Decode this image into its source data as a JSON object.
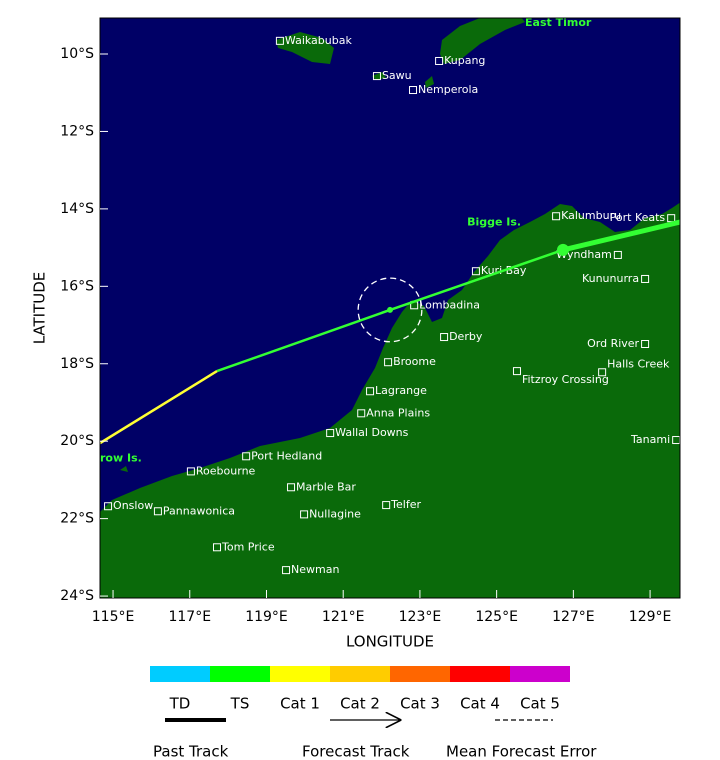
{
  "map": {
    "x_label": "LONGITUDE",
    "y_label": "LATITUDE",
    "xlim": [
      114.66,
      129.78
    ],
    "ylim": [
      9.07,
      24.05
    ],
    "xticks": [
      {
        "value": 115,
        "label": "115°E"
      },
      {
        "value": 117,
        "label": "117°E"
      },
      {
        "value": 119,
        "label": "119°E"
      },
      {
        "value": 121,
        "label": "121°E"
      },
      {
        "value": 123,
        "label": "123°E"
      },
      {
        "value": 125,
        "label": "125°E"
      },
      {
        "value": 127,
        "label": "127°E"
      },
      {
        "value": 129,
        "label": "129°E"
      }
    ],
    "yticks": [
      {
        "value": 10,
        "label": "10°S"
      },
      {
        "value": 12,
        "label": "12°S"
      },
      {
        "value": 14,
        "label": "14°S"
      },
      {
        "value": 16,
        "label": "16°S"
      },
      {
        "value": 18,
        "label": "18°S"
      },
      {
        "value": 20,
        "label": "20°S"
      },
      {
        "value": 22,
        "label": "22°S"
      },
      {
        "value": 24,
        "label": "24°S"
      }
    ],
    "sea_color": "#000066",
    "land_color": "#0a6a0a"
  },
  "places": [
    {
      "name": "Waikabubak",
      "lon": 119.35,
      "lat": 9.66
    },
    {
      "name": "Kupang",
      "lon": 123.5,
      "lat": 10.18
    },
    {
      "name": "Sawu",
      "lon": 121.88,
      "lat": 10.57
    },
    {
      "name": "Nemperola",
      "lon": 122.82,
      "lat": 10.93
    },
    {
      "name": "Kalumburu",
      "lon": 126.55,
      "lat": 14.19
    },
    {
      "name": "Port Keats",
      "lon": 129.55,
      "lat": 14.24
    },
    {
      "name": "Wyndham",
      "lon": 128.16,
      "lat": 15.19
    },
    {
      "name": "Kuri Bay",
      "lon": 124.46,
      "lat": 15.61
    },
    {
      "name": "Kununurra",
      "lon": 128.87,
      "lat": 15.81
    },
    {
      "name": "Lombadina",
      "lon": 122.85,
      "lat": 16.49
    },
    {
      "name": "Derby",
      "lon": 123.63,
      "lat": 17.31
    },
    {
      "name": "Ord River",
      "lon": 128.87,
      "lat": 17.49
    },
    {
      "name": "Broome",
      "lon": 122.17,
      "lat": 17.96
    },
    {
      "name": "Halls Creek",
      "lon": 127.75,
      "lat": 18.22
    },
    {
      "name": "Fitzroy Crossing",
      "lon": 125.53,
      "lat": 18.19
    },
    {
      "name": "Lagrange",
      "lon": 121.7,
      "lat": 18.71
    },
    {
      "name": "Anna Plains",
      "lon": 121.47,
      "lat": 19.28
    },
    {
      "name": "Wallal Downs",
      "lon": 120.66,
      "lat": 19.79
    },
    {
      "name": "Tanami",
      "lon": 129.68,
      "lat": 19.97
    },
    {
      "name": "Port Hedland",
      "lon": 118.47,
      "lat": 20.39
    },
    {
      "name": "Roebourne",
      "lon": 117.03,
      "lat": 20.78
    },
    {
      "name": "Marble Bar",
      "lon": 119.64,
      "lat": 21.19
    },
    {
      "name": "Onslow",
      "lon": 114.87,
      "lat": 21.68
    },
    {
      "name": "Pannawonica",
      "lon": 116.17,
      "lat": 21.81
    },
    {
      "name": "Telfer",
      "lon": 122.12,
      "lat": 21.65
    },
    {
      "name": "Nullagine",
      "lon": 119.98,
      "lat": 21.89
    },
    {
      "name": "Tom Price",
      "lon": 117.71,
      "lat": 22.74
    },
    {
      "name": "Newman",
      "lon": 119.51,
      "lat": 23.33
    }
  ],
  "regions": [
    {
      "name": "East Timor",
      "lon": 125.74,
      "lat": 9.2
    },
    {
      "name": "Bigge Is.",
      "lon": 124.23,
      "lat": 14.35
    },
    {
      "name": "row Is.",
      "lon": 114.66,
      "lat": 20.45
    }
  ],
  "track": {
    "segments": [
      {
        "kind": "past",
        "color": "#33ff33",
        "points": [
          [
            129.78,
            14.34
          ],
          [
            126.73,
            15.06
          ]
        ]
      },
      {
        "kind": "forecast",
        "color": "#33ff33",
        "points": [
          [
            126.73,
            15.06
          ],
          [
            122.22,
            16.61
          ],
          [
            117.71,
            18.19
          ]
        ]
      },
      {
        "kind": "forecast",
        "color": "#ffff33",
        "points": [
          [
            117.71,
            18.19
          ],
          [
            114.66,
            20.05
          ]
        ]
      }
    ],
    "current": {
      "lon": 126.73,
      "lat": 15.06,
      "color": "#33ff33"
    },
    "forecast_points": [
      {
        "lon": 122.22,
        "lat": 16.61,
        "color": "#33ff33"
      }
    ],
    "error_circle": {
      "lon": 122.22,
      "lat": 16.61,
      "radius_deg": 0.83
    }
  },
  "legend": {
    "categories": [
      {
        "label": "TD",
        "color": "#00ccff"
      },
      {
        "label": "TS",
        "color": "#00ff00"
      },
      {
        "label": "Cat 1",
        "color": "#ffff00"
      },
      {
        "label": "Cat 2",
        "color": "#ffcc00"
      },
      {
        "label": "Cat 3",
        "color": "#ff6600"
      },
      {
        "label": "Cat 4",
        "color": "#ff0000"
      },
      {
        "label": "Cat 5",
        "color": "#cc00cc"
      }
    ],
    "past_track": "Past Track",
    "forecast_track": "Forecast Track",
    "mean_forecast_error": "Mean Forecast Error"
  }
}
